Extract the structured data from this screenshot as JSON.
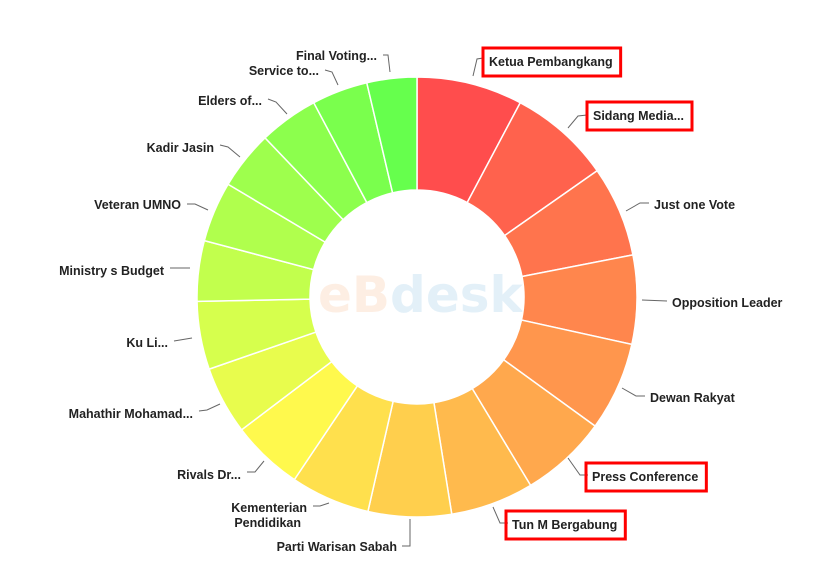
{
  "chart_data": {
    "type": "pie",
    "variant": "donut",
    "title": "",
    "legend": "none",
    "watermark": {
      "prefix": "eB",
      "suffix": "desk"
    },
    "categories": [
      "Ketua Pembangkang",
      "Sidang Media...",
      "Just one Vote",
      "Opposition Leader",
      "Dewan Rakyat",
      "Press Conference",
      "Tun M Bergabung",
      "Parti Warisan Sabah",
      "Kementerian Pendidikan",
      "Rivals Dr...",
      "Mahathir Mohamad...",
      "Ku Li...",
      "Ministry s Budget",
      "Veteran UMNO",
      "Kadir Jasin",
      "Elders of...",
      "Service to...",
      "Final Voting..."
    ],
    "values": [
      28,
      27,
      24,
      23.5,
      23.5,
      23,
      22,
      22,
      21,
      19,
      18,
      18,
      16,
      16,
      15.5,
      15.7,
      14.8,
      13.2
    ],
    "colors": [
      "#ff4d4d",
      "#ff624d",
      "#ff744d",
      "#ff864d",
      "#ff964d",
      "#ffa84d",
      "#ffba4d",
      "#ffcf4d",
      "#ffe04d",
      "#fff94d",
      "#e8fc4d",
      "#d6ff4d",
      "#c2ff4d",
      "#b0ff4d",
      "#9eff4d",
      "#8cff4d",
      "#7aff4d",
      "#66ff4d"
    ],
    "highlighted": [
      "Ketua Pembangkang",
      "Sidang Media...",
      "Press Conference",
      "Tun M Bergabung"
    ],
    "highlight_color": "#ff0000"
  }
}
